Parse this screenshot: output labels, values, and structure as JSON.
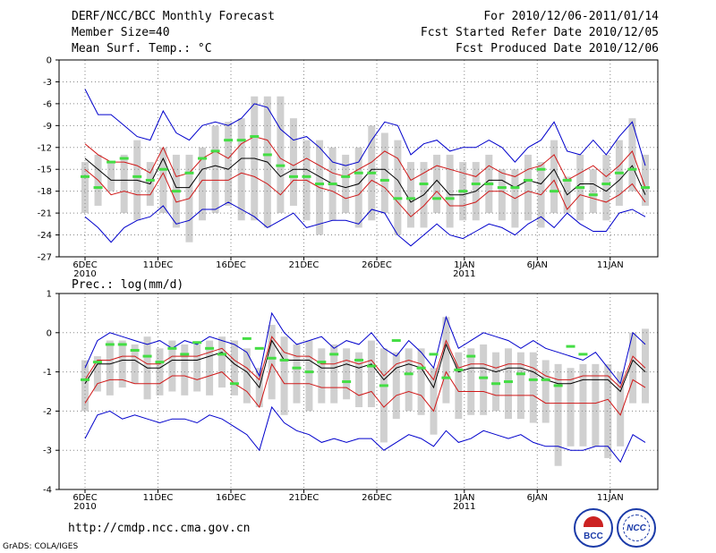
{
  "header": {
    "title": "DERF/NCC/BCC Monthly Forecast",
    "member_size": "Member Size=40",
    "variable": "Mean Surf. Temp.: °C",
    "period": "For 2010/12/06-2011/01/14",
    "fcst_started": "Fcst Started Refer Date 2010/12/05",
    "fcst_produced": "Fcst Produced Date 2010/12/06"
  },
  "footer": {
    "url": "http://cmdp.ncc.cma.gov.cn",
    "credit": "GrADS: COLA/IGES",
    "logo_bcc": "BCC",
    "logo_ncc": "NCC"
  },
  "colors": {
    "mean": "#000000",
    "inner_envelope": "#d01818",
    "outer_envelope": "#0000cc",
    "spread_bar": "#d0d0d0",
    "marker": "#44dd44",
    "grid": "#888888"
  },
  "chart_data": [
    {
      "type": "line",
      "title": "Mean Surf. Temp.: °C",
      "ylim": [
        -27,
        0
      ],
      "yticks": [
        0,
        -3,
        -6,
        -9,
        -12,
        -15,
        -18,
        -21,
        -24,
        -27
      ],
      "xtick_labels": [
        "6DEC",
        "11DEC",
        "16DEC",
        "21DEC",
        "26DEC",
        "1JAN",
        "6JAN",
        "11JAN"
      ],
      "xtick_years": [
        "2010",
        "",
        "",
        "",
        "",
        "2011",
        "",
        ""
      ],
      "x_days": 40,
      "series": [
        {
          "name": "max",
          "values": [
            -4,
            -7.5,
            -7.5,
            -9,
            -10.5,
            -11,
            -7,
            -10,
            -11,
            -9,
            -8.5,
            -9,
            -8,
            -6,
            -6.5,
            -9.5,
            -11,
            -10.5,
            -12,
            -14,
            -14.5,
            -14,
            -11,
            -8.5,
            -9,
            -13,
            -11.5,
            -11,
            -12.5,
            -12,
            -12,
            -11,
            -12,
            -14,
            -12,
            -11,
            -8.5,
            -12.5,
            -13,
            -11,
            -13,
            -10.5,
            -8.5,
            -14.5
          ]
        },
        {
          "name": "upper",
          "values": [
            -11.5,
            -13,
            -14,
            -14,
            -14.5,
            -15.5,
            -12,
            -16,
            -15.5,
            -13.5,
            -12.5,
            -13.5,
            -11.5,
            -10.5,
            -11,
            -13.5,
            -14.5,
            -13.5,
            -14.5,
            -15.5,
            -16,
            -15,
            -14,
            -12.5,
            -13.5,
            -16.5,
            -15.5,
            -14.5,
            -15,
            -15.5,
            -16,
            -14.5,
            -15.5,
            -16,
            -15,
            -14.5,
            -13,
            -16.5,
            -15.5,
            -14.5,
            -16,
            -14.5,
            -12.5,
            -17.5
          ]
        },
        {
          "name": "mean",
          "values": [
            -13.5,
            -15,
            -16.5,
            -16.5,
            -16.5,
            -17,
            -13.5,
            -17.5,
            -17.5,
            -15,
            -14.5,
            -15,
            -13.5,
            -13.5,
            -14,
            -16,
            -15,
            -15,
            -16,
            -17,
            -17.5,
            -17,
            -15,
            -15,
            -16.5,
            -19.5,
            -18.5,
            -16.5,
            -18.5,
            -18.5,
            -18,
            -16.5,
            -16.5,
            -17.5,
            -16.5,
            -17,
            -15,
            -18.5,
            -17,
            -17,
            -18,
            -16.5,
            -14.5,
            -18.5
          ]
        },
        {
          "name": "lower",
          "values": [
            -15,
            -16.5,
            -18.5,
            -18,
            -18.5,
            -18.5,
            -15.5,
            -19.5,
            -19,
            -16.5,
            -16.5,
            -16.5,
            -15.5,
            -16,
            -17,
            -18.5,
            -16.5,
            -16.5,
            -17.5,
            -18,
            -19,
            -18.5,
            -16.5,
            -17.5,
            -19.5,
            -21.5,
            -20,
            -18,
            -20,
            -20,
            -19.5,
            -18,
            -18,
            -19,
            -18,
            -18.5,
            -16.5,
            -20.5,
            -18.5,
            -19,
            -19.5,
            -18.5,
            -17,
            -19.5
          ]
        },
        {
          "name": "min",
          "values": [
            -21.5,
            -23,
            -25,
            -23,
            -22,
            -21.5,
            -20,
            -22.5,
            -22,
            -20.5,
            -20.5,
            -19.5,
            -20.5,
            -21.5,
            -23,
            -22,
            -21,
            -23,
            -22.5,
            -22,
            -22,
            -22.5,
            -20.5,
            -21,
            -24,
            -25.5,
            -24,
            -22.5,
            -24,
            -24.5,
            -23.5,
            -22.5,
            -23,
            -24,
            -22.5,
            -21.5,
            -23,
            -21,
            -22.5,
            -23.5,
            -23.5,
            -21,
            -20.5,
            -21.5
          ]
        },
        {
          "name": "spread_high",
          "values": [
            -14,
            -13,
            -14,
            -13,
            -11,
            -14,
            -12,
            -13,
            -13,
            -12,
            -9,
            -8.5,
            -8,
            -5,
            -5,
            -5,
            -8,
            -11,
            -11,
            -12,
            -13,
            -12,
            -9,
            -10,
            -11,
            -14,
            -14,
            -13,
            -13,
            -14,
            -14,
            -13,
            -15,
            -15,
            -13,
            -14,
            -11,
            -16,
            -13,
            -15,
            -13,
            -11,
            -8,
            -13
          ]
        },
        {
          "name": "spread_low",
          "values": [
            -21,
            -20,
            -18,
            -21,
            -22,
            -20,
            -21,
            -23,
            -25,
            -22,
            -21,
            -20,
            -22,
            -22,
            -23,
            -21,
            -20,
            -22,
            -24,
            -22,
            -21,
            -23,
            -22,
            -21,
            -24,
            -23,
            -23,
            -21,
            -23,
            -22,
            -22,
            -21,
            -22,
            -23,
            -22,
            -23,
            -21,
            -21,
            -22,
            -21,
            -22,
            -20,
            -18,
            -20
          ]
        },
        {
          "name": "observed",
          "values": [
            -16,
            -17.5,
            -14,
            -13.5,
            -16,
            -16.5,
            -15,
            -18,
            -15.5,
            -13.5,
            -12.5,
            -11,
            -11,
            -10.5,
            -13,
            -14.5,
            -16,
            -16,
            -17,
            -17,
            -16,
            -15.5,
            -15.5,
            -16.5,
            -19,
            -19,
            -17,
            -19,
            -19,
            -18,
            -17,
            -17,
            -17.5,
            -17.5,
            -16.5,
            -15,
            -18,
            -16.5,
            -17.5,
            -18.5,
            -17,
            -15.5,
            -15,
            -17.5
          ]
        }
      ]
    },
    {
      "type": "line",
      "title": "Prec.: log(mm/d)",
      "ylim": [
        -4,
        1
      ],
      "yticks": [
        1,
        0,
        -1,
        -2,
        -3,
        -4
      ],
      "xtick_labels": [
        "6DEC",
        "11DEC",
        "16DEC",
        "21DEC",
        "26DEC",
        "1JAN",
        "6JAN",
        "11JAN"
      ],
      "xtick_years": [
        "2010",
        "",
        "",
        "",
        "",
        "2011",
        "",
        ""
      ],
      "x_days": 40,
      "series": [
        {
          "name": "max",
          "values": [
            -0.9,
            -0.2,
            0,
            -0.1,
            -0.2,
            -0.3,
            -0.2,
            -0.4,
            -0.2,
            -0.3,
            -0.1,
            -0.2,
            -0.3,
            -0.5,
            -1.1,
            0.5,
            0,
            -0.3,
            -0.2,
            -0.1,
            -0.4,
            -0.2,
            -0.3,
            0,
            -0.4,
            -0.6,
            -0.2,
            -0.5,
            -0.9,
            0.4,
            -0.4,
            -0.2,
            0,
            -0.1,
            -0.2,
            -0.4,
            -0.2,
            -0.4,
            -0.5,
            -0.6,
            -0.7,
            -0.5,
            -0.9,
            -1.3,
            0,
            -0.3
          ]
        },
        {
          "name": "upper",
          "values": [
            -1.2,
            -0.7,
            -0.7,
            -0.6,
            -0.6,
            -0.8,
            -0.8,
            -0.6,
            -0.6,
            -0.6,
            -0.5,
            -0.4,
            -0.7,
            -0.9,
            -1.2,
            -0.1,
            -0.5,
            -0.6,
            -0.6,
            -0.8,
            -0.8,
            -0.7,
            -0.8,
            -0.7,
            -1.1,
            -0.8,
            -0.7,
            -0.8,
            -1.2,
            -0.2,
            -0.9,
            -0.8,
            -0.8,
            -0.9,
            -0.8,
            -0.8,
            -0.9,
            -1.1,
            -1.2,
            -1.2,
            -1.1,
            -1.1,
            -1.1,
            -1.4,
            -0.6,
            -0.9
          ]
        },
        {
          "name": "mean",
          "values": [
            -1.3,
            -0.8,
            -0.8,
            -0.7,
            -0.7,
            -0.9,
            -0.9,
            -0.7,
            -0.7,
            -0.7,
            -0.6,
            -0.5,
            -0.8,
            -1,
            -1.4,
            -0.2,
            -0.7,
            -0.7,
            -0.7,
            -0.9,
            -0.9,
            -0.8,
            -0.9,
            -0.8,
            -1.2,
            -0.9,
            -0.8,
            -0.9,
            -1.4,
            -0.3,
            -1,
            -0.9,
            -0.9,
            -1,
            -0.9,
            -0.9,
            -1,
            -1.2,
            -1.3,
            -1.3,
            -1.2,
            -1.2,
            -1.2,
            -1.5,
            -0.7,
            -1
          ]
        },
        {
          "name": "lower",
          "values": [
            -1.8,
            -1.3,
            -1.2,
            -1.2,
            -1.3,
            -1.3,
            -1.3,
            -1.1,
            -1.1,
            -1.2,
            -1.1,
            -1,
            -1.3,
            -1.5,
            -1.9,
            -0.8,
            -1.3,
            -1.3,
            -1.3,
            -1.4,
            -1.4,
            -1.4,
            -1.6,
            -1.5,
            -1.9,
            -1.6,
            -1.5,
            -1.6,
            -2,
            -1,
            -1.5,
            -1.5,
            -1.5,
            -1.6,
            -1.6,
            -1.6,
            -1.6,
            -1.8,
            -1.8,
            -1.8,
            -1.8,
            -1.8,
            -1.7,
            -2.1,
            -1.2,
            -1.4
          ]
        },
        {
          "name": "min",
          "values": [
            -2.7,
            -2.1,
            -2,
            -2.2,
            -2.1,
            -2.2,
            -2.3,
            -2.2,
            -2.2,
            -2.3,
            -2.1,
            -2.2,
            -2.4,
            -2.6,
            -3,
            -1.9,
            -2.3,
            -2.5,
            -2.6,
            -2.8,
            -2.7,
            -2.8,
            -2.7,
            -2.7,
            -3,
            -2.8,
            -2.6,
            -2.7,
            -2.9,
            -2.5,
            -2.8,
            -2.7,
            -2.5,
            -2.6,
            -2.7,
            -2.6,
            -2.8,
            -2.9,
            -2.9,
            -3,
            -3,
            -2.9,
            -2.9,
            -3.3,
            -2.6,
            -2.8
          ]
        },
        {
          "name": "spread_high",
          "values": [
            -0.7,
            -0.6,
            -0.2,
            -0.2,
            -0.3,
            -0.1,
            -0.4,
            -0.2,
            -0.3,
            -0.3,
            -0.2,
            -0.1,
            -0.2,
            -0.4,
            -0.9,
            0.2,
            -0.1,
            -0.3,
            -0.2,
            -0.4,
            -0.3,
            -0.4,
            -0.5,
            -0.2,
            -0.4,
            -0.5,
            -0.4,
            -0.4,
            -0.9,
            0.4,
            -0.5,
            -0.4,
            -0.3,
            -0.5,
            -0.4,
            -0.5,
            -0.5,
            -0.7,
            -0.8,
            -0.9,
            -0.8,
            -0.8,
            -0.8,
            -1,
            0,
            0.1
          ]
        },
        {
          "name": "spread_low",
          "values": [
            -2,
            -1.5,
            -1.6,
            -1.4,
            -1.3,
            -1.7,
            -1.6,
            -1.5,
            -1.6,
            -1.5,
            -1.6,
            -1.4,
            -1.6,
            -1.8,
            -1.9,
            -1.7,
            -2.1,
            -1.8,
            -2,
            -1.8,
            -1.8,
            -1.7,
            -1.9,
            -1.9,
            -2.8,
            -2.2,
            -2,
            -2.1,
            -2.6,
            -1.8,
            -2.2,
            -2.1,
            -2.1,
            -2,
            -2.2,
            -2.2,
            -2.3,
            -2.3,
            -3.4,
            -2.9,
            -2.9,
            -2.9,
            -3.2,
            -2.9,
            -1.8,
            -1.8
          ]
        },
        {
          "name": "observed",
          "values": [
            -1.2,
            -0.75,
            -0.3,
            -0.3,
            -0.45,
            -0.6,
            -0.75,
            -0.4,
            -0.55,
            -0.25,
            -0.4,
            -0.55,
            -1.3,
            -0.15,
            -0.4,
            -0.65,
            -0.7,
            -0.9,
            -1,
            -0.75,
            -0.55,
            -1.25,
            -0.7,
            -0.85,
            -1.35,
            -0.2,
            -1.05,
            -0.9,
            -0.55,
            -1.15,
            -0.95,
            -0.6,
            -1.15,
            -1.3,
            -1.25,
            -1.05,
            -1.2,
            -1.2,
            -1.35,
            -0.35,
            -0.55
          ]
        }
      ]
    }
  ]
}
